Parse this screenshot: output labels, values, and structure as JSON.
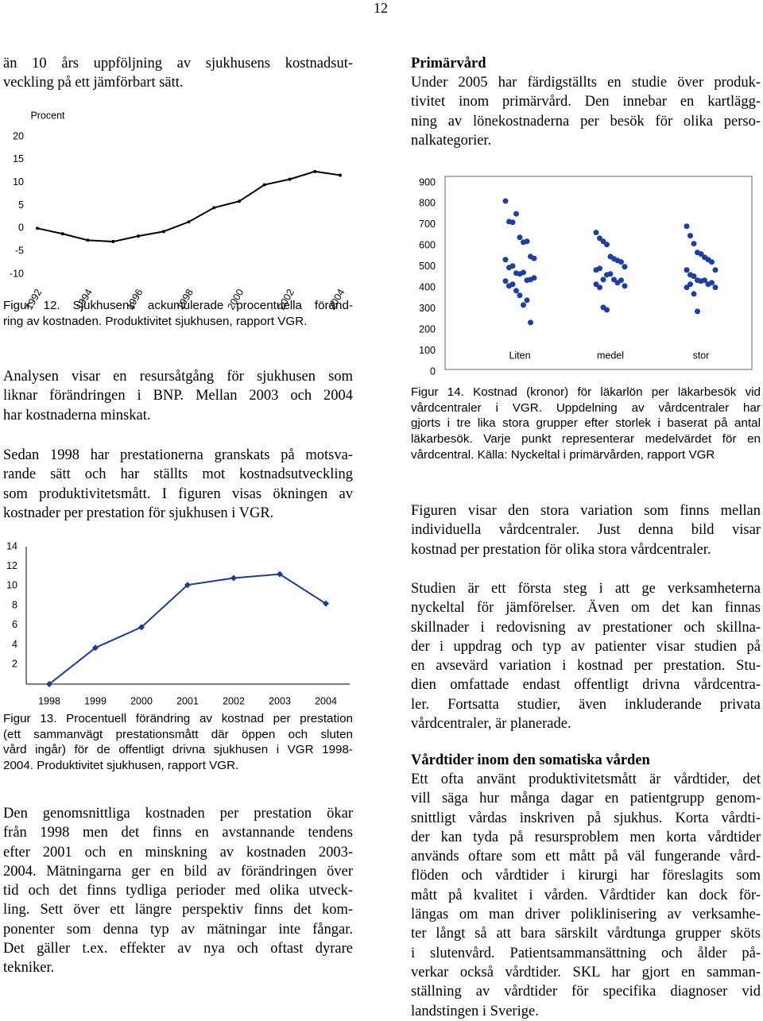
{
  "text": {
    "page_number": "12",
    "intro": [
      "än 10 års uppföljning av sjukhusens kostnadsut-",
      "veckling på ett jämförbart sätt."
    ],
    "fig12_caption": [
      "Figur 12. Sjukhusens ackumulerade procentuella föränd-",
      "ring av kostnaden. Produktivitet sjukhusen, rapport VGR."
    ],
    "analysis": [
      "Analysen visar en resursåtgång för sjukhusen som",
      "liknar förändringen i BNP. Mellan 2003 och 2004",
      "har kostnaderna minskat."
    ],
    "since_1998": [
      "Sedan 1998 har prestationerna granskats på motsva-",
      "rande sätt och har ställts mot kostnadsutveckling",
      "som produktivitetsmått. I figuren visas ökningen av",
      "kostnader per prestation för sjukhusen i VGR."
    ],
    "fig13_caption": [
      "Figur 13. Procentuell förändring av kostnad per prestation",
      "(ett sammanvägt prestationsmått där öppen och sluten",
      "vård ingår) för de offentligt drivna sjukhusen i VGR 1998-",
      "2004. Produktivitet sjukhusen, rapport VGR."
    ],
    "average_cost": [
      "Den genomsnittliga kostnaden per prestation ökar",
      "från 1998 men det finns en avstannande tendens",
      "efter 2001 och en minskning av kostnaden 2003-",
      "2004. Mätningarna ger en bild av förändringen över",
      "tid och det finns tydliga perioder med olika utveck-",
      "ling. Sett över ett längre perspektiv finns det kom-",
      "ponenter som denna typ av mätningar inte fångar.",
      "Det gäller t.ex. effekter av nya och oftast dyrare",
      "tekniker."
    ],
    "heading_primary": [
      "Primärvård"
    ],
    "primary": [
      "Under 2005 har färdigställts en studie över produk-",
      "tivitet inom primärvård. Den innebar en kartlägg-",
      "ning av lönekostnaderna per besök för olika perso-",
      "nalkategorier."
    ],
    "fig14_caption": [
      "Figur 14. Kostnad (kronor) för läkarlön per läkarbesök vid",
      "vårdcentraler i VGR. Uppdelning av vårdcentraler har",
      "gjorts i tre lika stora grupper efter storlek i baserat på antal",
      "läkarbesök. Varje punkt representerar medelvärdet för en",
      "vårdcentral. Källa: Nyckeltal i primärvården, rapport VGR"
    ],
    "variation": [
      "Figuren visar den stora variation som finns mellan",
      "individuella vårdcentraler. Just denna bild visar",
      "kostnad per prestation för olika stora vårdcentraler."
    ],
    "study": [
      "Studien är ett första steg i att ge verksamheterna",
      "nyckeltal för jämförelser. Även om det kan finnas",
      "skillnader i redovisning av prestationer och skillna-",
      "der i uppdrag och typ av patienter visar studien på",
      "en avsevärd variation i kostnad per prestation. Stu-",
      "dien omfattade endast offentligt drivna vårdcentra-",
      "ler. Fortsatta studier, även inkluderande privata",
      "vårdcentraler, är planerade."
    ],
    "heading_los": [
      "Vårdtider inom den somatiska vården"
    ],
    "los": [
      "Ett ofta använt produktivitetsmått är vårdtider, det",
      "vill säga hur många dagar en patientgrupp genom-",
      "snittligt vårdas inskriven på sjukhus. Korta vårdti-",
      "der kan tyda på resursproblem men korta vårdtider",
      "används oftare som ett mått på väl fungerande vård-",
      "flöden och vårdtider i kirurgi har föreslagits som",
      "mått på kvalitet i vården. Vårdtider kan dock för-",
      "längas om man driver poliklinisering av verksamhe-",
      "ter långt så att bara särskilt vårdtunga grupper sköts",
      "i slutenvård. Patientsammansättning och ålder på-",
      "verkar också vårdtider. SKL har gjort en samman-",
      "ställning av vårdtider för specifika diagnoser vid",
      "landstingen i Sverige."
    ]
  },
  "chart_data": [
    {
      "type": "line",
      "y_label": "Procent",
      "x": [
        1992,
        1993,
        1994,
        1995,
        1996,
        1997,
        1998,
        1999,
        2000,
        2001,
        2002,
        2003,
        2004
      ],
      "values": [
        0,
        -1.2,
        -2.6,
        -2.9,
        -1.7,
        -0.7,
        1.4,
        4.5,
        5.9,
        9.5,
        10.7,
        12.4,
        11.6
      ],
      "xlim": [
        1992,
        2004
      ],
      "xticks": [
        1992,
        1994,
        1996,
        1998,
        2000,
        2002,
        2004
      ],
      "ylim": [
        -10,
        20
      ],
      "yticks": [
        20,
        15,
        10,
        5,
        0,
        -5,
        -10
      ],
      "color": "#000000"
    },
    {
      "type": "line",
      "categories": [
        "1998",
        "1999",
        "2000",
        "2001",
        "2002",
        "2003",
        "2004"
      ],
      "values": [
        0,
        3.7,
        5.8,
        10.1,
        10.8,
        11.2,
        8.2
      ],
      "ylim": [
        0,
        14
      ],
      "yticks": [
        2,
        4,
        6,
        8,
        10,
        12,
        14
      ],
      "color": "#1f3a93"
    },
    {
      "type": "strip",
      "categories": [
        "Liten",
        "medel",
        "stor"
      ],
      "values": [
        [
          813,
          715,
          712,
          752,
          640,
          617,
          621,
          549,
          540,
          534,
          496,
          504,
          470,
          466,
          473,
          436,
          439,
          447,
          432,
          409,
          417,
          386,
          364,
          318,
          341,
          235
        ],
        [
          663,
          636,
          621,
          606,
          549,
          538,
          530,
          523,
          500,
          485,
          492,
          439,
          462,
          466,
          439,
          424,
          436,
          409,
          417,
          402,
          307,
          295
        ],
        [
          693,
          648,
          610,
          568,
          561,
          545,
          534,
          523,
          485,
          485,
          462,
          455,
          436,
          432,
          436,
          417,
          424,
          402,
          402,
          417,
          371,
          288
        ]
      ],
      "ylim": [
        0,
        900
      ],
      "yticks": [
        0,
        100,
        200,
        300,
        400,
        500,
        600,
        700,
        800,
        900
      ],
      "color": "#1f3fa0"
    }
  ]
}
